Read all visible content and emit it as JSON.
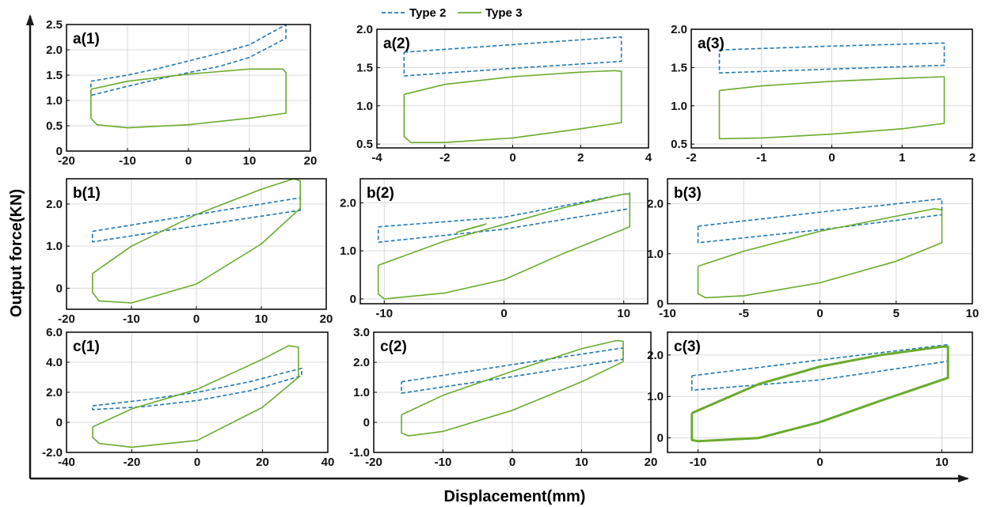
{
  "figure": {
    "ylabel": "Output force(KN)",
    "xlabel": "Displacement(mm)",
    "colors": {
      "type2": "#1f77b4",
      "type3": "#6aab2e",
      "grid": "#d9d9d9"
    }
  },
  "legend": {
    "items": [
      {
        "name": "Type 2",
        "style": "dashed"
      },
      {
        "name": "Type 3",
        "style": "solid"
      }
    ],
    "placement": "top-center"
  },
  "chart_data": [
    {
      "id": "a1",
      "label": "a(1)",
      "type": "line",
      "xlim": [
        -20,
        20
      ],
      "ylim": [
        0,
        2.5
      ],
      "xticks": [
        -20,
        -10,
        0,
        10,
        20
      ],
      "yticks": [
        0,
        0.5,
        1.0,
        1.5,
        2.0,
        2.5
      ],
      "xtick_labels": [
        "-20",
        "-10",
        "0",
        "10",
        "20"
      ],
      "ytick_labels": [
        "0",
        "0.5",
        "1.0",
        "1.5",
        "2.0",
        "2.5"
      ],
      "series": [
        {
          "name": "Type 2",
          "x": [
            -16,
            -10,
            -5,
            0,
            5,
            10,
            16,
            16,
            10,
            5,
            0,
            -5,
            -10,
            -16,
            -16
          ],
          "y": [
            1.38,
            1.5,
            1.63,
            1.78,
            1.93,
            2.1,
            2.5,
            2.23,
            1.85,
            1.67,
            1.55,
            1.42,
            1.28,
            1.1,
            1.38
          ]
        },
        {
          "name": "Type 3",
          "x": [
            -16,
            -10,
            0,
            10,
            15.5,
            16,
            16,
            10,
            0,
            -10,
            -15,
            -16,
            -16
          ],
          "y": [
            1.22,
            1.38,
            1.52,
            1.62,
            1.62,
            1.55,
            0.75,
            0.65,
            0.52,
            0.46,
            0.52,
            0.65,
            1.22
          ]
        }
      ]
    },
    {
      "id": "a2",
      "label": "a(2)",
      "type": "line",
      "xlim": [
        -4,
        4
      ],
      "ylim": [
        0.45,
        2.0
      ],
      "xticks": [
        -4,
        -2,
        0,
        2,
        4
      ],
      "yticks": [
        0.5,
        1.0,
        1.5,
        2.0
      ],
      "xtick_labels": [
        "-4",
        "-2",
        "0",
        "2",
        "4"
      ],
      "ytick_labels": [
        "0.5",
        "1.0",
        "1.5",
        "2.0"
      ],
      "series": [
        {
          "name": "Type 2",
          "x": [
            -3.2,
            0,
            3.2,
            3.2,
            0,
            -3.2,
            -3.2
          ],
          "y": [
            1.7,
            1.8,
            1.9,
            1.58,
            1.49,
            1.39,
            1.7
          ]
        },
        {
          "name": "Type 3",
          "x": [
            -3.2,
            -2,
            0,
            2,
            3,
            3.2,
            3.2,
            2,
            0,
            -2,
            -3,
            -3.2,
            -3.2
          ],
          "y": [
            1.15,
            1.28,
            1.38,
            1.44,
            1.46,
            1.45,
            0.78,
            0.7,
            0.58,
            0.52,
            0.52,
            0.6,
            1.15
          ]
        }
      ]
    },
    {
      "id": "a3",
      "label": "a(3)",
      "type": "line",
      "xlim": [
        -2,
        2
      ],
      "ylim": [
        0.45,
        2.0
      ],
      "xticks": [
        -2,
        -1,
        0,
        1,
        2
      ],
      "yticks": [
        0.5,
        1.0,
        1.5,
        2.0
      ],
      "xtick_labels": [
        "-2",
        "-1",
        "0",
        "1",
        "2"
      ],
      "ytick_labels": [
        "0.5",
        "1.0",
        "1.5",
        "2.0"
      ],
      "series": [
        {
          "name": "Type 2",
          "x": [
            -1.6,
            0,
            1.6,
            1.6,
            0,
            -1.6,
            -1.6
          ],
          "y": [
            1.73,
            1.78,
            1.82,
            1.53,
            1.48,
            1.43,
            1.73
          ]
        },
        {
          "name": "Type 3",
          "x": [
            -1.6,
            -1,
            0,
            1,
            1.6,
            1.6,
            1,
            0,
            -1,
            -1.6,
            -1.6
          ],
          "y": [
            1.2,
            1.26,
            1.32,
            1.36,
            1.38,
            0.77,
            0.7,
            0.63,
            0.58,
            0.57,
            1.2
          ]
        }
      ]
    },
    {
      "id": "b1",
      "label": "b(1)",
      "type": "line",
      "xlim": [
        -20,
        20
      ],
      "ylim": [
        -0.5,
        2.6
      ],
      "xticks": [
        -20,
        -10,
        0,
        10,
        20
      ],
      "yticks": [
        0,
        1.0,
        2.0
      ],
      "xtick_labels": [
        "-20",
        "-10",
        "0",
        "10",
        "20"
      ],
      "ytick_labels": [
        "0",
        "1.0",
        "2.0"
      ],
      "series": [
        {
          "name": "Type 2",
          "x": [
            -16,
            0,
            16,
            16,
            0,
            -16,
            -16
          ],
          "y": [
            1.35,
            1.75,
            2.15,
            1.85,
            1.48,
            1.1,
            1.35
          ]
        },
        {
          "name": "Type 3",
          "x": [
            -16,
            -10,
            0,
            10,
            15,
            16,
            16,
            10,
            0,
            -10,
            -15,
            -16,
            -16
          ],
          "y": [
            0.35,
            1.0,
            1.75,
            2.35,
            2.6,
            2.55,
            1.9,
            1.05,
            0.1,
            -0.35,
            -0.3,
            -0.1,
            0.35
          ]
        }
      ]
    },
    {
      "id": "b2",
      "label": "b(2)",
      "type": "line",
      "xlim": [
        -12,
        12
      ],
      "ylim": [
        -0.1,
        2.5
      ],
      "xticks": [
        -10,
        0,
        10
      ],
      "yticks": [
        0,
        1.0,
        2.0
      ],
      "xtick_labels": [
        "-10",
        "0",
        "10"
      ],
      "ytick_labels": [
        "0",
        "1.0",
        "2.0"
      ],
      "series": [
        {
          "name": "Type 2",
          "x": [
            -10.5,
            0,
            10.5,
            10.5,
            0,
            -10.5,
            -10.5
          ],
          "y": [
            1.5,
            1.7,
            2.2,
            1.88,
            1.45,
            1.18,
            1.5
          ]
        },
        {
          "name": "Type 3",
          "x": [
            -10.5,
            -5,
            0,
            5,
            10,
            10.5,
            10.5,
            5,
            0,
            -5,
            -10,
            -10.5,
            -10.5
          ],
          "y": [
            0.7,
            1.2,
            1.55,
            1.9,
            2.18,
            2.18,
            1.5,
            0.95,
            0.4,
            0.12,
            0.0,
            0.1,
            0.7
          ]
        },
        {
          "name": "Type 3 (inner)",
          "x": [
            -4,
            -2,
            -1.5,
            -3.5,
            -4
          ],
          "y": [
            1.38,
            1.52,
            1.56,
            1.42,
            1.38
          ]
        }
      ]
    },
    {
      "id": "b3",
      "label": "b(3)",
      "type": "line",
      "xlim": [
        -10,
        10
      ],
      "ylim": [
        0,
        2.5
      ],
      "xticks": [
        -10,
        -5,
        0,
        5,
        10
      ],
      "yticks": [
        0,
        1.0,
        2.0
      ],
      "xtick_labels": [
        "-10",
        "-5",
        "0",
        "5",
        "10"
      ],
      "ytick_labels": [
        "0",
        "1.0",
        "2.0"
      ],
      "series": [
        {
          "name": "Type 2",
          "x": [
            -8,
            0,
            8,
            8,
            0,
            -8,
            -8
          ],
          "y": [
            1.55,
            1.83,
            2.1,
            1.78,
            1.48,
            1.22,
            1.55
          ]
        },
        {
          "name": "Type 3",
          "x": [
            -8,
            -5,
            0,
            5,
            7.5,
            8,
            8,
            5,
            0,
            -5,
            -7.5,
            -8,
            -8
          ],
          "y": [
            0.75,
            1.05,
            1.45,
            1.75,
            1.9,
            1.88,
            1.22,
            0.85,
            0.42,
            0.16,
            0.12,
            0.2,
            0.75
          ]
        }
      ]
    },
    {
      "id": "c1",
      "label": "c(1)",
      "type": "line",
      "xlim": [
        -40,
        40
      ],
      "ylim": [
        -2.0,
        6.0
      ],
      "xticks": [
        -40,
        -20,
        0,
        20,
        40
      ],
      "yticks": [
        -2.0,
        0,
        2.0,
        4.0,
        6.0
      ],
      "xtick_labels": [
        "-40",
        "-20",
        "0",
        "20",
        "40"
      ],
      "ytick_labels": [
        "-2.0",
        "0",
        "2.0",
        "4.0",
        "6.0"
      ],
      "series": [
        {
          "name": "Type 2",
          "x": [
            -32,
            -16,
            0,
            16,
            32,
            32,
            16,
            0,
            -16,
            -32,
            -32
          ],
          "y": [
            1.1,
            1.5,
            2.0,
            2.7,
            3.6,
            3.1,
            2.1,
            1.45,
            1.05,
            0.85,
            1.1
          ]
        },
        {
          "name": "Type 3",
          "x": [
            -32,
            -20,
            0,
            20,
            28,
            31,
            31,
            20,
            0,
            -20,
            -30,
            -32,
            -32
          ],
          "y": [
            -0.3,
            0.9,
            2.2,
            4.2,
            5.1,
            5.0,
            3.0,
            1.0,
            -1.2,
            -1.65,
            -1.4,
            -1.0,
            -0.3
          ]
        }
      ]
    },
    {
      "id": "c2",
      "label": "c(2)",
      "type": "line",
      "xlim": [
        -20,
        20
      ],
      "ylim": [
        -1.0,
        3.0
      ],
      "xticks": [
        -20,
        -10,
        0,
        10,
        20
      ],
      "yticks": [
        -1.0,
        0,
        1.0,
        2.0,
        3.0
      ],
      "xtick_labels": [
        "-20",
        "-10",
        "0",
        "10",
        "20"
      ],
      "ytick_labels": [
        "-1.0",
        "0",
        "1.0",
        "2.0",
        "3.0"
      ],
      "series": [
        {
          "name": "Type 2",
          "x": [
            -16,
            0,
            16,
            16,
            0,
            -16,
            -16
          ],
          "y": [
            1.35,
            1.92,
            2.48,
            2.1,
            1.52,
            0.97,
            1.35
          ]
        },
        {
          "name": "Type 3",
          "x": [
            -16,
            -10,
            0,
            10,
            15,
            16,
            16,
            10,
            0,
            -10,
            -15,
            -16,
            -16
          ],
          "y": [
            0.25,
            0.9,
            1.7,
            2.45,
            2.72,
            2.7,
            2.02,
            1.35,
            0.4,
            -0.3,
            -0.45,
            -0.35,
            0.25
          ]
        }
      ]
    },
    {
      "id": "c3",
      "label": "c(3)",
      "type": "line",
      "xlim": [
        -12.5,
        12.5
      ],
      "ylim": [
        -0.35,
        2.55
      ],
      "xticks": [
        -10,
        0,
        10
      ],
      "yticks": [
        0,
        1.0,
        2.0
      ],
      "xtick_labels": [
        "-10",
        "0",
        "10"
      ],
      "ytick_labels": [
        "0",
        "1.0",
        "2.0"
      ],
      "series": [
        {
          "name": "Type 2",
          "x": [
            -10.5,
            0,
            10.5,
            10.5,
            0,
            -10.5,
            -10.5
          ],
          "y": [
            1.5,
            1.88,
            2.25,
            1.85,
            1.4,
            1.15,
            1.5
          ]
        },
        {
          "name": "Type 3",
          "x": [
            -10.5,
            -5,
            0,
            5,
            10,
            10.5,
            10.5,
            5,
            0,
            -5,
            -10,
            -10.5,
            -10.5
          ],
          "y": [
            0.6,
            1.3,
            1.72,
            2.0,
            2.2,
            2.2,
            1.45,
            0.9,
            0.38,
            0.0,
            -0.08,
            -0.05,
            0.6
          ]
        }
      ]
    }
  ]
}
